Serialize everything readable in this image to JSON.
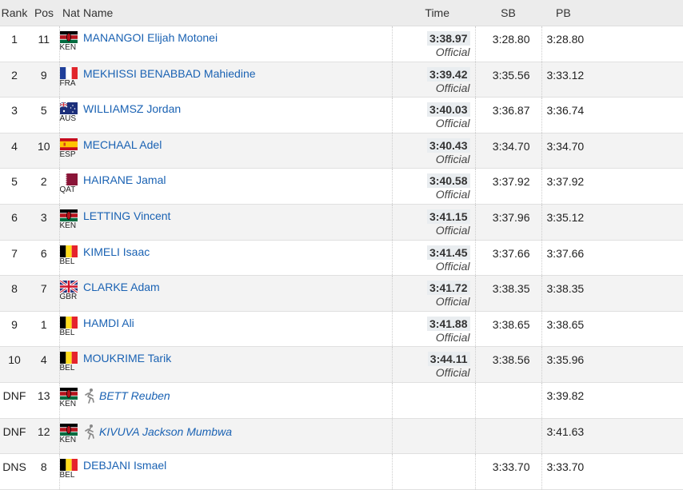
{
  "headers": {
    "rank": "Rank",
    "pos": "Pos",
    "nat": "Nat",
    "name": "Name",
    "time": "Time",
    "sb": "SB",
    "pb": "PB"
  },
  "chart_data": {
    "type": "table",
    "columns": [
      "Rank",
      "Pos",
      "Nat",
      "Name",
      "Time",
      "SB",
      "PB"
    ],
    "rows": [
      {
        "rank": "1",
        "pos": "11",
        "nat": "KEN",
        "name": "MANANGOI Elijah Motonei",
        "time": "3:38.97",
        "status": "Official",
        "sb": "3:28.80",
        "pb": "3:28.80",
        "dnf": false
      },
      {
        "rank": "2",
        "pos": "9",
        "nat": "FRA",
        "name": "MEKHISSI BENABBAD Mahiedine",
        "time": "3:39.42",
        "status": "Official",
        "sb": "3:35.56",
        "pb": "3:33.12",
        "dnf": false
      },
      {
        "rank": "3",
        "pos": "5",
        "nat": "AUS",
        "name": "WILLIAMSZ Jordan",
        "time": "3:40.03",
        "status": "Official",
        "sb": "3:36.87",
        "pb": "3:36.74",
        "dnf": false
      },
      {
        "rank": "4",
        "pos": "10",
        "nat": "ESP",
        "name": "MECHAAL Adel",
        "time": "3:40.43",
        "status": "Official",
        "sb": "3:34.70",
        "pb": "3:34.70",
        "dnf": false
      },
      {
        "rank": "5",
        "pos": "2",
        "nat": "QAT",
        "name": "HAIRANE Jamal",
        "time": "3:40.58",
        "status": "Official",
        "sb": "3:37.92",
        "pb": "3:37.92",
        "dnf": false
      },
      {
        "rank": "6",
        "pos": "3",
        "nat": "KEN",
        "name": "LETTING Vincent",
        "time": "3:41.15",
        "status": "Official",
        "sb": "3:37.96",
        "pb": "3:35.12",
        "dnf": false
      },
      {
        "rank": "7",
        "pos": "6",
        "nat": "BEL",
        "name": "KIMELI Isaac",
        "time": "3:41.45",
        "status": "Official",
        "sb": "3:37.66",
        "pb": "3:37.66",
        "dnf": false
      },
      {
        "rank": "8",
        "pos": "7",
        "nat": "GBR",
        "name": "CLARKE Adam",
        "time": "3:41.72",
        "status": "Official",
        "sb": "3:38.35",
        "pb": "3:38.35",
        "dnf": false
      },
      {
        "rank": "9",
        "pos": "1",
        "nat": "BEL",
        "name": "HAMDI Ali",
        "time": "3:41.88",
        "status": "Official",
        "sb": "3:38.65",
        "pb": "3:38.65",
        "dnf": false
      },
      {
        "rank": "10",
        "pos": "4",
        "nat": "BEL",
        "name": "MOUKRIME Tarik",
        "time": "3:44.11",
        "status": "Official",
        "sb": "3:38.56",
        "pb": "3:35.96",
        "dnf": false
      },
      {
        "rank": "DNF",
        "pos": "13",
        "nat": "KEN",
        "name": "BETT Reuben",
        "time": "",
        "status": "",
        "sb": "",
        "pb": "3:39.82",
        "dnf": true
      },
      {
        "rank": "DNF",
        "pos": "12",
        "nat": "KEN",
        "name": "KIVUVA Jackson Mumbwa",
        "time": "",
        "status": "",
        "sb": "",
        "pb": "3:41.63",
        "dnf": true
      },
      {
        "rank": "DNS",
        "pos": "8",
        "nat": "BEL",
        "name": "DEBJANI Ismael",
        "time": "",
        "status": "",
        "sb": "3:33.70",
        "pb": "3:33.70",
        "dnf": false
      }
    ]
  },
  "colors": {
    "link": "#1a62b3",
    "header_bg": "#ececec",
    "stripe": "#f3f3f3"
  },
  "icons": {
    "dnf_marker": "runner-icon"
  }
}
